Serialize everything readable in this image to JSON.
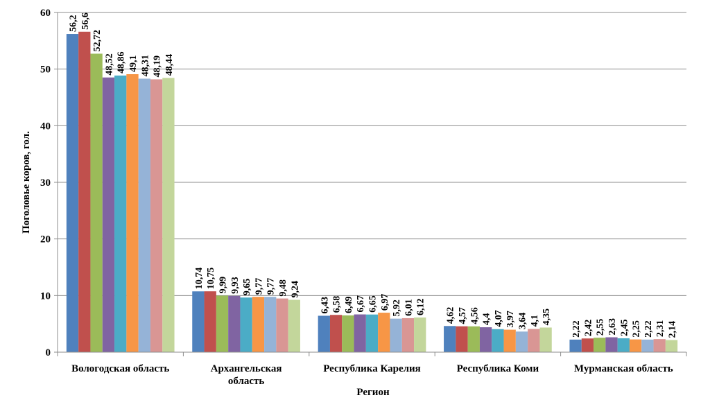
{
  "chart_data": {
    "type": "bar",
    "title": "",
    "xlabel": "Регион",
    "ylabel": "Поголовье коров, гол.",
    "ylim": [
      0,
      60
    ],
    "yticks": [
      0,
      10,
      20,
      30,
      40,
      50,
      60
    ],
    "grid": true,
    "legend": "none",
    "categories": [
      [
        "Вологодская область"
      ],
      [
        "Архангельская",
        "область"
      ],
      [
        "Республика Карелия"
      ],
      [
        "Республика Коми"
      ],
      [
        "Мурманская область"
      ]
    ],
    "colors": [
      "#4F81BD",
      "#C0504D",
      "#9BBB59",
      "#8064A2",
      "#4BACC6",
      "#F79646",
      "#95B3D7",
      "#D99694",
      "#C3D69B"
    ],
    "series_values": [
      [
        56.2,
        56.6,
        52.72,
        48.52,
        48.86,
        49.1,
        48.31,
        48.19,
        48.44
      ],
      [
        10.74,
        10.75,
        9.99,
        9.93,
        9.65,
        9.77,
        9.77,
        9.48,
        9.24
      ],
      [
        6.43,
        6.58,
        6.49,
        6.67,
        6.65,
        6.97,
        5.92,
        6.01,
        6.12
      ],
      [
        4.62,
        4.57,
        4.56,
        4.4,
        4.07,
        3.97,
        3.64,
        4.1,
        4.35
      ],
      [
        2.22,
        2.42,
        2.55,
        2.63,
        2.45,
        2.25,
        2.22,
        2.31,
        2.14
      ]
    ],
    "labels": [
      [
        "56,2",
        "56,6",
        "52,72",
        "48,52",
        "48,86",
        "49,1",
        "48,31",
        "48,19",
        "48,44"
      ],
      [
        "10,74",
        "10,75",
        "9,99",
        "9,93",
        "9,65",
        "9,77",
        "9,77",
        "9,48",
        "9,24"
      ],
      [
        "6,43",
        "6,58",
        "6,49",
        "6,67",
        "6,65",
        "6,97",
        "5,92",
        "6,01",
        "6,12"
      ],
      [
        "4,62",
        "4,57",
        "4,56",
        "4,4",
        "4,07",
        "3,97",
        "3,64",
        "4,1",
        "4,35"
      ],
      [
        "2,22",
        "2,42",
        "2,55",
        "2,63",
        "2,45",
        "2,25",
        "2,22",
        "2,31",
        "2,14"
      ]
    ]
  }
}
